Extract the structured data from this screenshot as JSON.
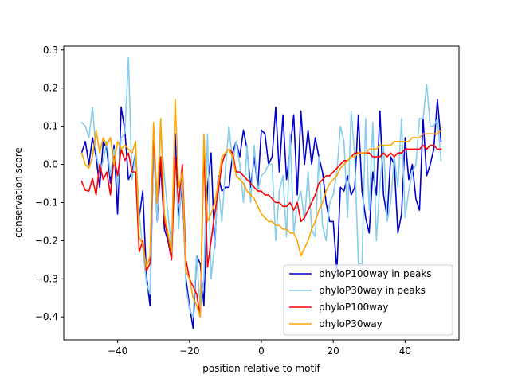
{
  "chart_data": {
    "type": "line",
    "title": "",
    "xlabel": "position relative to motif",
    "ylabel": "conservation score",
    "xlim": [
      -55,
      55
    ],
    "ylim": [
      -0.46,
      0.31
    ],
    "xticks": [
      -40,
      -20,
      0,
      20,
      40
    ],
    "xtick_labels": [
      "−40",
      "−20",
      "0",
      "20",
      "40"
    ],
    "yticks": [
      -0.4,
      -0.3,
      -0.2,
      -0.1,
      0.0,
      0.1,
      0.2,
      0.3
    ],
    "ytick_labels": [
      "−0.4",
      "−0.3",
      "−0.2",
      "−0.1",
      "0.0",
      "0.1",
      "0.2",
      "0.3"
    ],
    "grid": false,
    "legend_position": "lower-right",
    "x": [
      -50,
      -49,
      -48,
      -47,
      -46,
      -45,
      -44,
      -43,
      -42,
      -41,
      -40,
      -39,
      -38,
      -37,
      -36,
      -35,
      -34,
      -33,
      -32,
      -31,
      -30,
      -29,
      -28,
      -27,
      -26,
      -25,
      -24,
      -23,
      -22,
      -21,
      -20,
      -19,
      -18,
      -17,
      -16,
      -15,
      -14,
      -13,
      -12,
      -11,
      -10,
      -9,
      -8,
      -7,
      -6,
      -5,
      -4,
      -3,
      -2,
      -1,
      0,
      1,
      2,
      3,
      4,
      5,
      6,
      7,
      8,
      9,
      10,
      11,
      12,
      13,
      14,
      15,
      16,
      17,
      18,
      19,
      20,
      21,
      22,
      23,
      24,
      25,
      26,
      27,
      28,
      29,
      30,
      31,
      32,
      33,
      34,
      35,
      36,
      37,
      38,
      39,
      40,
      41,
      42,
      43,
      44,
      45,
      46,
      47,
      48,
      49,
      50
    ],
    "series": [
      {
        "name": "phyloP100way in peaks",
        "color": "#0000cc",
        "values": [
          0.03,
          0.06,
          0.0,
          0.07,
          0.02,
          -0.06,
          0.06,
          0.04,
          -0.05,
          0.05,
          -0.13,
          0.15,
          0.09,
          -0.04,
          -0.02,
          0.03,
          -0.14,
          -0.07,
          -0.29,
          -0.37,
          0.05,
          -0.15,
          0.0,
          -0.17,
          -0.2,
          -0.25,
          0.08,
          -0.14,
          -0.05,
          -0.3,
          -0.37,
          -0.43,
          -0.24,
          -0.26,
          -0.37,
          -0.06,
          0.03,
          -0.22,
          -0.03,
          -0.07,
          -0.06,
          -0.06,
          0.03,
          0.06,
          0.02,
          0.09,
          0.04,
          -0.06,
          0.02,
          -0.06,
          0.09,
          0.08,
          0.0,
          0.02,
          0.15,
          -0.02,
          0.13,
          -0.04,
          0.04,
          0.13,
          -0.08,
          0.14,
          0.0,
          0.09,
          0.0,
          0.07,
          0.02,
          -0.02,
          -0.1,
          -0.15,
          -0.15,
          -0.28,
          -0.06,
          -0.07,
          -0.03,
          -0.08,
          -0.06,
          0.13,
          -0.07,
          -0.14,
          -0.18,
          -0.02,
          -0.08,
          0.14,
          -0.08,
          -0.14,
          0.02,
          0.0,
          -0.18,
          -0.13,
          0.07,
          -0.04,
          0.0,
          -0.09,
          -0.12,
          0.12,
          -0.03,
          0.0,
          0.04,
          0.17,
          0.06
        ]
      },
      {
        "name": "phyloP30way in peaks",
        "color": "#87ceeb",
        "values": [
          0.11,
          0.1,
          0.07,
          0.15,
          0.03,
          -0.02,
          0.01,
          0.06,
          -0.03,
          0.04,
          -0.06,
          0.07,
          0.08,
          0.28,
          -0.04,
          0.03,
          -0.13,
          -0.22,
          -0.31,
          -0.34,
          0.05,
          -0.15,
          0.09,
          -0.03,
          -0.13,
          -0.22,
          0.01,
          -0.17,
          0.0,
          -0.32,
          -0.38,
          -0.4,
          -0.24,
          -0.38,
          -0.3,
          0.08,
          -0.3,
          -0.21,
          -0.05,
          -0.15,
          -0.01,
          0.1,
          0.0,
          0.06,
          0.0,
          -0.1,
          0.05,
          -0.1,
          0.05,
          -0.07,
          -0.03,
          -0.02,
          0.0,
          0.0,
          -0.2,
          -0.07,
          -0.03,
          -0.19,
          0.08,
          -0.18,
          -0.1,
          -0.07,
          -0.15,
          -0.02,
          -0.17,
          -0.19,
          0.02,
          -0.16,
          -0.2,
          -0.1,
          -0.08,
          -0.02,
          0.1,
          0.06,
          -0.14,
          0.14,
          0.02,
          -0.26,
          -0.26,
          0.12,
          -0.12,
          0.11,
          -0.2,
          -0.05,
          0.05,
          -0.15,
          -0.1,
          0.02,
          -0.06,
          0.12,
          -0.14,
          -0.07,
          -0.02,
          0.0,
          0.12,
          0.12,
          0.21,
          0.1,
          0.1,
          0.12,
          0.01
        ]
      },
      {
        "name": "phyloP100way",
        "color": "#ff0000",
        "values": [
          -0.045,
          -0.068,
          -0.07,
          -0.037,
          -0.08,
          0.0,
          -0.04,
          -0.02,
          -0.08,
          0.02,
          -0.03,
          0.04,
          0.01,
          0.03,
          -0.02,
          -0.02,
          -0.23,
          -0.2,
          -0.28,
          -0.26,
          0.08,
          -0.1,
          0.02,
          -0.15,
          -0.19,
          -0.25,
          0.02,
          -0.1,
          0.0,
          -0.25,
          -0.3,
          -0.32,
          -0.34,
          -0.4,
          0.05,
          -0.27,
          -0.2,
          -0.13,
          -0.07,
          0.0,
          0.03,
          0.04,
          0.03,
          -0.02,
          -0.02,
          -0.03,
          -0.04,
          -0.05,
          -0.06,
          -0.07,
          -0.07,
          -0.08,
          -0.08,
          -0.09,
          -0.1,
          -0.1,
          -0.11,
          -0.11,
          -0.1,
          -0.12,
          -0.1,
          -0.15,
          -0.14,
          -0.12,
          -0.1,
          -0.08,
          -0.05,
          -0.04,
          -0.03,
          -0.03,
          -0.02,
          -0.01,
          0.0,
          0.01,
          0.01,
          0.02,
          0.03,
          0.03,
          0.03,
          0.03,
          0.03,
          0.02,
          0.02,
          0.02,
          0.03,
          0.02,
          0.03,
          0.02,
          0.03,
          0.03,
          0.04,
          0.04,
          0.04,
          0.04,
          0.04,
          0.05,
          0.04,
          0.05,
          0.05,
          0.04,
          0.04
        ]
      },
      {
        "name": "phyloP30way",
        "color": "#ffa500",
        "values": [
          0.03,
          0.0,
          -0.01,
          0.02,
          0.09,
          0.03,
          0.07,
          0.05,
          0.07,
          0.0,
          0.06,
          0.04,
          0.05,
          0.04,
          0.03,
          0.06,
          -0.19,
          -0.21,
          -0.27,
          -0.24,
          0.11,
          -0.1,
          0.12,
          -0.13,
          -0.18,
          -0.23,
          0.17,
          -0.06,
          -0.02,
          -0.28,
          -0.3,
          -0.35,
          -0.37,
          -0.4,
          0.08,
          -0.15,
          -0.13,
          -0.1,
          -0.05,
          0.02,
          0.03,
          0.04,
          0.02,
          -0.03,
          -0.04,
          -0.05,
          -0.07,
          -0.08,
          -0.09,
          -0.11,
          -0.13,
          -0.14,
          -0.15,
          -0.15,
          -0.16,
          -0.16,
          -0.17,
          -0.17,
          -0.18,
          -0.18,
          -0.2,
          -0.24,
          -0.22,
          -0.2,
          -0.17,
          -0.15,
          -0.12,
          -0.1,
          -0.07,
          -0.05,
          -0.04,
          -0.03,
          -0.01,
          0.0,
          0.01,
          0.02,
          0.02,
          0.03,
          0.03,
          0.03,
          0.04,
          0.04,
          0.04,
          0.05,
          0.05,
          0.05,
          0.05,
          0.06,
          0.06,
          0.06,
          0.06,
          0.06,
          0.07,
          0.07,
          0.07,
          0.08,
          0.08,
          0.08,
          0.08,
          0.08,
          0.09
        ]
      }
    ]
  }
}
